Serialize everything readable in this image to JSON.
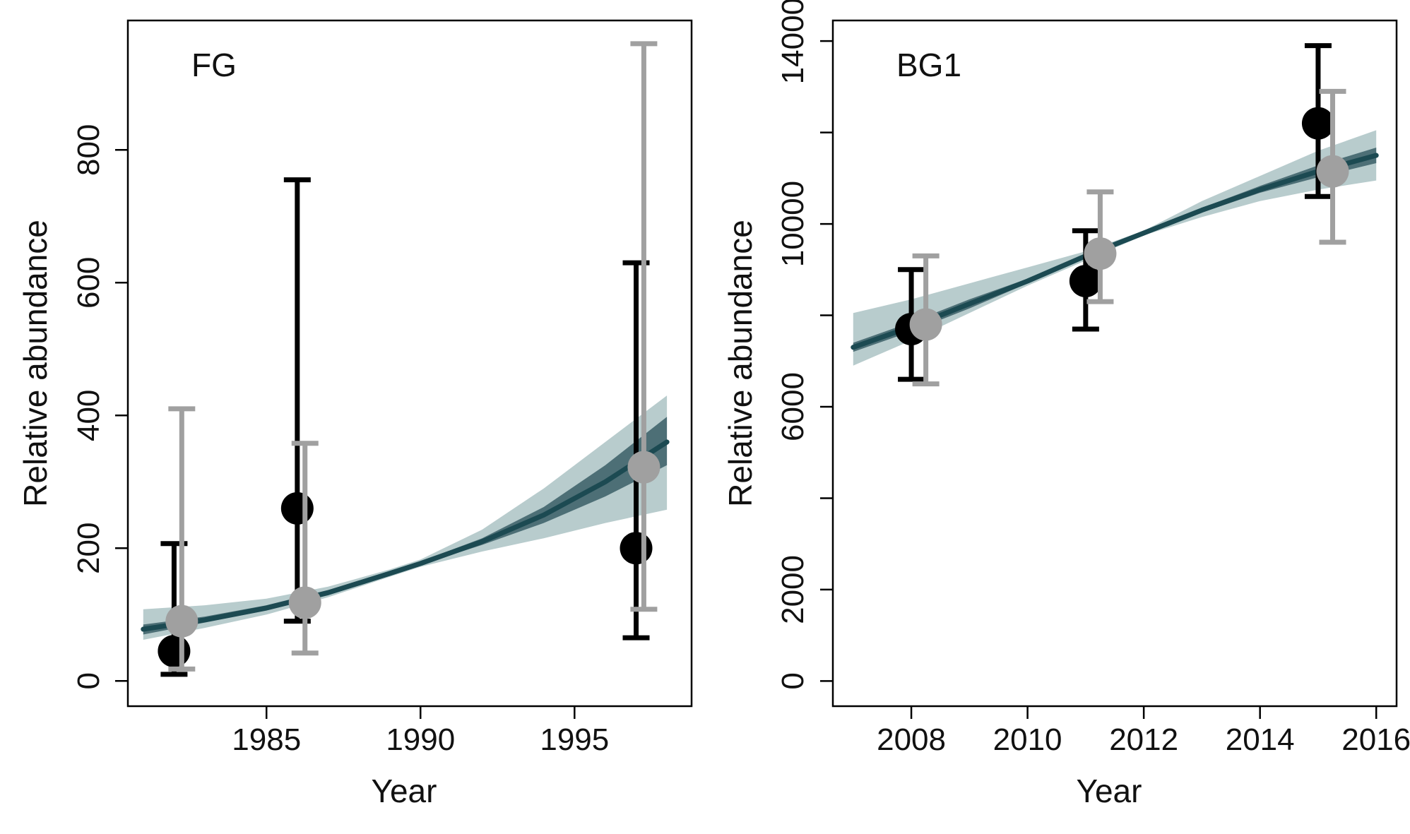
{
  "chart_data": [
    {
      "type": "scatter",
      "panel_label": "FG",
      "xlabel": "Year",
      "ylabel": "Relative abundance",
      "xlim": [
        1980.5,
        1998.8
      ],
      "ylim": [
        -38,
        995
      ],
      "x_ticks": [
        1985,
        1990,
        1995
      ],
      "x_tick_labels": [
        "1985",
        "1990",
        "1995"
      ],
      "y_ticks": [
        0,
        200,
        400,
        600,
        800
      ],
      "y_tick_labels": [
        "0",
        "200",
        "400",
        "600",
        "800"
      ],
      "series": [
        {
          "color": "#000000",
          "points": [
            {
              "x": 1982,
              "y": 45,
              "lo": 10,
              "hi": 207
            },
            {
              "x": 1986,
              "y": 260,
              "lo": 90,
              "hi": 755
            },
            {
              "x": 1997,
              "y": 200,
              "lo": 65,
              "hi": 630
            }
          ]
        },
        {
          "color": "#a0a0a0",
          "points": [
            {
              "x": 1982.25,
              "y": 90,
              "lo": 18,
              "hi": 410
            },
            {
              "x": 1986.25,
              "y": 118,
              "lo": 42,
              "hi": 358
            },
            {
              "x": 1997.25,
              "y": 322,
              "lo": 108,
              "hi": 960
            }
          ]
        }
      ],
      "trend": {
        "color": "#1c4a52",
        "x": [
          1981,
          1983,
          1985,
          1987,
          1989,
          1990,
          1992,
          1994,
          1996,
          1998
        ],
        "y": [
          78,
          92,
          110,
          133,
          162,
          177,
          210,
          250,
          300,
          360
        ],
        "band_inner": {
          "color": "#4d6f76",
          "lo": [
            70,
            88,
            106,
            130,
            160,
            175,
            205,
            238,
            278,
            325
          ],
          "hi": [
            85,
            97,
            114,
            137,
            165,
            180,
            215,
            262,
            325,
            398
          ]
        },
        "band_outer": {
          "color": "#b8cccd",
          "lo": [
            62,
            80,
            100,
            126,
            157,
            172,
            195,
            215,
            238,
            258
          ],
          "hi": [
            108,
            114,
            124,
            142,
            168,
            183,
            228,
            290,
            360,
            430
          ]
        }
      }
    },
    {
      "type": "scatter",
      "panel_label": "BG1",
      "xlabel": "Year",
      "ylabel": "Relative abundance",
      "xlim": [
        2006.65,
        2016.35
      ],
      "ylim": [
        -550,
        14450
      ],
      "x_ticks": [
        2008,
        2010,
        2012,
        2014,
        2016
      ],
      "x_tick_labels": [
        "2008",
        "2010",
        "2012",
        "2014",
        "2016"
      ],
      "y_ticks": [
        0,
        2000,
        6000,
        10000,
        14000
      ],
      "y_tick_labels": [
        "0",
        "2000",
        "6000",
        "10000",
        "14000"
      ],
      "y_minor_ticks": [
        4000,
        8000,
        12000
      ],
      "series": [
        {
          "color": "#000000",
          "points": [
            {
              "x": 2008,
              "y": 7700,
              "lo": 6600,
              "hi": 9000
            },
            {
              "x": 2011,
              "y": 8750,
              "lo": 7700,
              "hi": 9850
            },
            {
              "x": 2015,
              "y": 12200,
              "lo": 10600,
              "hi": 13900
            }
          ]
        },
        {
          "color": "#a0a0a0",
          "points": [
            {
              "x": 2008.25,
              "y": 7800,
              "lo": 6500,
              "hi": 9300
            },
            {
              "x": 2011.25,
              "y": 9350,
              "lo": 8300,
              "hi": 10700
            },
            {
              "x": 2015.25,
              "y": 11150,
              "lo": 9600,
              "hi": 12900
            }
          ]
        }
      ],
      "trend": {
        "color": "#1c4a52",
        "x": [
          2007,
          2008,
          2009,
          2010,
          2011,
          2012,
          2013,
          2014,
          2015,
          2016
        ],
        "y": [
          7300,
          7750,
          8250,
          8750,
          9300,
          9800,
          10300,
          10750,
          11150,
          11500
        ],
        "band_inner": {
          "color": "#4d6f76",
          "lo": [
            7200,
            7650,
            8150,
            8700,
            9250,
            9780,
            10250,
            10680,
            11020,
            11330
          ],
          "hi": [
            7400,
            7850,
            8350,
            8800,
            9350,
            9830,
            10350,
            10830,
            11280,
            11670
          ]
        },
        "band_outer": {
          "color": "#b8cccd",
          "lo": [
            6900,
            7450,
            8050,
            8650,
            9200,
            9750,
            10150,
            10500,
            10750,
            10950
          ],
          "hi": [
            8050,
            8350,
            8700,
            9050,
            9400,
            9850,
            10500,
            11050,
            11600,
            12050
          ]
        }
      }
    }
  ]
}
